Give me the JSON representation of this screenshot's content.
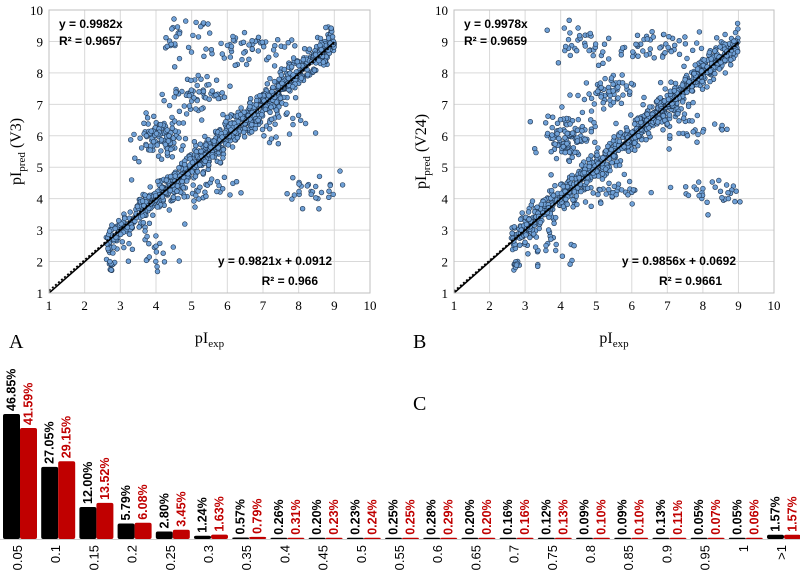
{
  "chart_data": [
    {
      "type": "scatter",
      "panel": "A",
      "xlabel": "pIexp",
      "ylabel": "pIpred (V3)",
      "xlim": [
        1,
        10
      ],
      "ylim": [
        1,
        10
      ],
      "xticks": [
        "1",
        "2",
        "3",
        "4",
        "5",
        "6",
        "7",
        "8",
        "9",
        "10"
      ],
      "yticks": [
        "1",
        "2",
        "3",
        "4",
        "5",
        "6",
        "7",
        "8",
        "9",
        "10"
      ],
      "grid": true,
      "annotations": [
        {
          "text": "y = 0.9982x",
          "position": "top-left"
        },
        {
          "text": "R² = 0.9657",
          "position": "top-left"
        },
        {
          "text": "y = 0.9821x + 0.0912",
          "position": "bottom-right"
        },
        {
          "text": "R² = 0.966",
          "position": "bottom-right"
        }
      ],
      "fits": [
        {
          "slope": 0.9982,
          "intercept": 0,
          "r2": 0.9657
        },
        {
          "slope": 0.9821,
          "intercept": 0.0912,
          "r2": 0.966
        }
      ],
      "marker_color": "#6fa0d6"
    },
    {
      "type": "scatter",
      "panel": "B",
      "xlabel": "pIexp",
      "ylabel": "pIpred (V24)",
      "xlim": [
        1,
        10
      ],
      "ylim": [
        1,
        10
      ],
      "xticks": [
        "1",
        "2",
        "3",
        "4",
        "5",
        "6",
        "7",
        "8",
        "9",
        "10"
      ],
      "yticks": [
        "1",
        "2",
        "3",
        "4",
        "5",
        "6",
        "7",
        "8",
        "9",
        "10"
      ],
      "grid": true,
      "annotations": [
        {
          "text": "y = 0.9978x",
          "position": "top-left"
        },
        {
          "text": "R² = 0.9659",
          "position": "top-left"
        },
        {
          "text": "y = 0.9856x + 0.0692",
          "position": "bottom-right"
        },
        {
          "text": "R² = 0.9661",
          "position": "bottom-right"
        }
      ],
      "fits": [
        {
          "slope": 0.9978,
          "intercept": 0,
          "r2": 0.9659
        },
        {
          "slope": 0.9856,
          "intercept": 0.0692,
          "r2": 0.9661
        }
      ],
      "marker_color": "#6fa0d6"
    },
    {
      "type": "bar",
      "panel": "C",
      "categories": [
        "0.05",
        "0.1",
        "0.15",
        "0.2",
        "0.25",
        "0.3",
        "0.35",
        "0.4",
        "0.45",
        "0.5",
        "0.55",
        "0.6",
        "0.65",
        "0.7",
        "0.75",
        "0.8",
        "0.85",
        "0.9",
        "0.95",
        "1",
        ">1"
      ],
      "series": [
        {
          "color": "#000000",
          "values": [
            46.85,
            27.05,
            12.0,
            5.79,
            2.8,
            1.24,
            0.57,
            0.26,
            0.2,
            0.23,
            0.25,
            0.28,
            0.2,
            0.16,
            0.12,
            0.09,
            0.09,
            0.13,
            0.05,
            0.05,
            1.57
          ],
          "labels": [
            "46.85%",
            "27.05%",
            "12.00%",
            "5.79%",
            "2.80%",
            "1.24%",
            "0.57%",
            "0.26%",
            "0.20%",
            "0.23%",
            "0.25%",
            "0.28%",
            "0.20%",
            "0.16%",
            "0.12%",
            "0.09%",
            "0.09%",
            "0.13%",
            "0.05%",
            "0.05%",
            "1.57%"
          ]
        },
        {
          "color": "#c00000",
          "values": [
            41.59,
            29.15,
            13.52,
            6.08,
            3.45,
            1.63,
            0.79,
            0.31,
            0.23,
            0.24,
            0.25,
            0.29,
            0.2,
            0.16,
            0.13,
            0.1,
            0.1,
            0.11,
            0.07,
            0.06,
            1.57
          ],
          "labels": [
            "41.59%",
            "29.15%",
            "13.52%",
            "6.08%",
            "3.45%",
            "1.63%",
            "0.79%",
            "0.31%",
            "0.23%",
            "0.24%",
            "0.25%",
            "0.29%",
            "0.20%",
            "0.16%",
            "0.13%",
            "0.10%",
            "0.10%",
            "0.11%",
            "0.07%",
            "0.06%",
            "1.57%"
          ]
        }
      ]
    }
  ],
  "panel_labels": {
    "a": "A",
    "b": "B",
    "c": "C"
  }
}
